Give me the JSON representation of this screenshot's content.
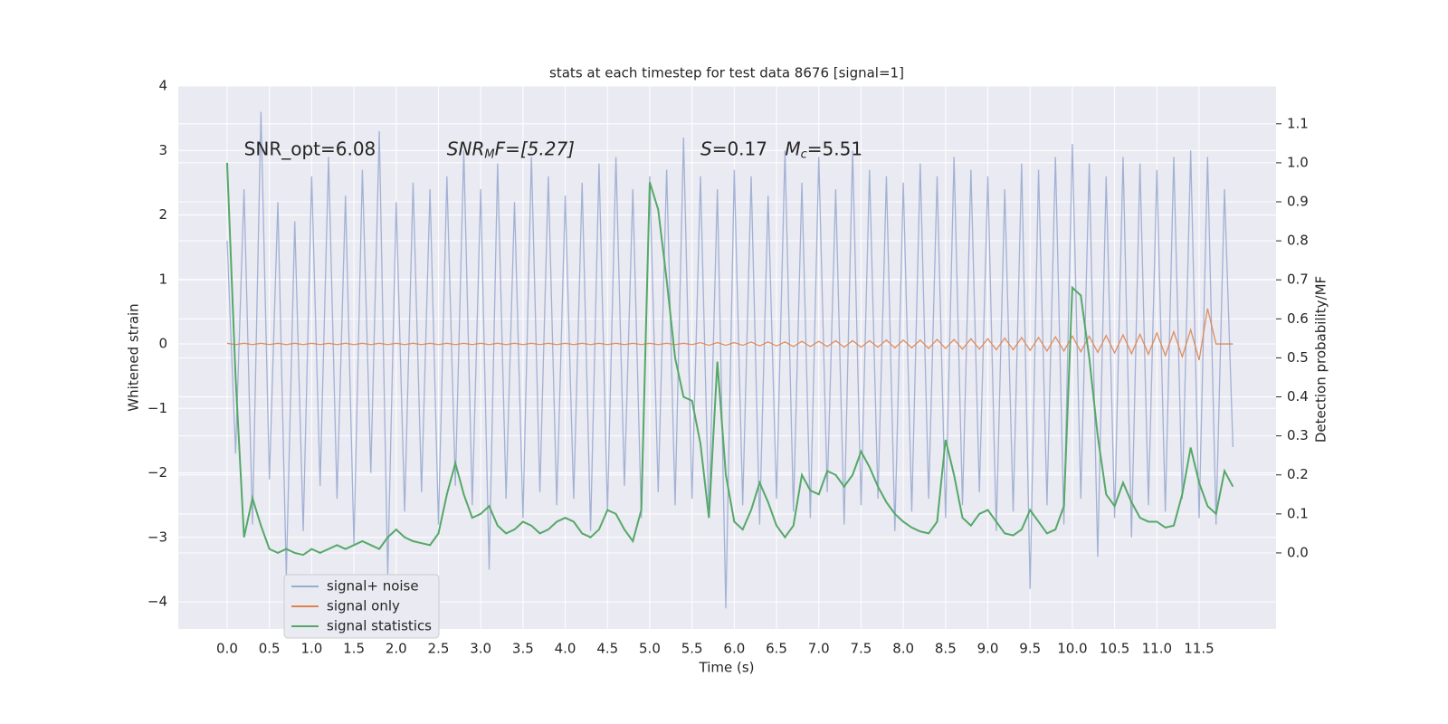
{
  "chart_data": {
    "type": "line",
    "title": "stats at each timestep for test data 8676 [signal=1]",
    "xlabel": "Time (s)",
    "ylabel": "Whitened strain",
    "y2label": "Detection probability/MF",
    "annotations": [
      {
        "text": "SNR_opt=6.08",
        "x": 0.2,
        "y": 2.9
      },
      {
        "text": "SNR",
        "subscript": "M",
        "suffix": "F=[5.27]",
        "x": 2.6,
        "y": 2.9
      },
      {
        "text": "S",
        "suffix": "=0.17",
        "x": 5.6,
        "y": 2.9
      },
      {
        "text": "M",
        "subscript": "c",
        "suffix": "=5.51",
        "x": 6.6,
        "y": 2.9
      }
    ],
    "xlim": [
      -0.578,
      12.41
    ],
    "ylim": [
      -4.42,
      4
    ],
    "y2lim": [
      -0.195,
      1.197
    ],
    "xticks": [
      {
        "value": 0,
        "label": "0.0"
      },
      {
        "value": 0.5,
        "label": "0.5"
      },
      {
        "value": 1,
        "label": "1.0"
      },
      {
        "value": 1.5,
        "label": "1.5"
      },
      {
        "value": 2,
        "label": "2.0"
      },
      {
        "value": 2.5,
        "label": "2.5"
      },
      {
        "value": 3,
        "label": "3.0"
      },
      {
        "value": 3.5,
        "label": "3.5"
      },
      {
        "value": 4,
        "label": "4.0"
      },
      {
        "value": 4.5,
        "label": "4.5"
      },
      {
        "value": 5,
        "label": "5.0"
      },
      {
        "value": 5.5,
        "label": "5.5"
      },
      {
        "value": 6,
        "label": "6.0"
      },
      {
        "value": 6.5,
        "label": "6.5"
      },
      {
        "value": 7,
        "label": "7.0"
      },
      {
        "value": 7.5,
        "label": "7.5"
      },
      {
        "value": 8,
        "label": "8.0"
      },
      {
        "value": 8.5,
        "label": "8.5"
      },
      {
        "value": 9,
        "label": "9.0"
      },
      {
        "value": 9.5,
        "label": "9.5"
      },
      {
        "value": 10,
        "label": "10.0"
      },
      {
        "value": 10.5,
        "label": "10.5"
      },
      {
        "value": 11,
        "label": "11.0"
      },
      {
        "value": 11.5,
        "label": "11.5"
      }
    ],
    "yticks": [
      {
        "value": -4,
        "label": "−4"
      },
      {
        "value": -3,
        "label": "−3"
      },
      {
        "value": -2,
        "label": "−2"
      },
      {
        "value": -1,
        "label": "−1"
      },
      0,
      1,
      2,
      3,
      4
    ],
    "y2ticks": [
      {
        "value": 0,
        "label": "0.0"
      },
      {
        "value": 0.1,
        "label": "0.1"
      },
      {
        "value": 0.2,
        "label": "0.2"
      },
      {
        "value": 0.3,
        "label": "0.3"
      },
      {
        "value": 0.4,
        "label": "0.4"
      },
      {
        "value": 0.5,
        "label": "0.5"
      },
      {
        "value": 0.6,
        "label": "0.6"
      },
      {
        "value": 0.7,
        "label": "0.7"
      },
      {
        "value": 0.8,
        "label": "0.8"
      },
      {
        "value": 0.9,
        "label": "0.9"
      },
      {
        "value": 1,
        "label": "1.0"
      },
      {
        "value": 1.1,
        "label": "1.1"
      }
    ],
    "grid": true,
    "legend": "lower left",
    "x": [
      0,
      0.1,
      0.2,
      0.3,
      0.4,
      0.5,
      0.6,
      0.7,
      0.8,
      0.9,
      1,
      1.1,
      1.2,
      1.3,
      1.4,
      1.5,
      1.6,
      1.7,
      1.8,
      1.9,
      2,
      2.1,
      2.2,
      2.3,
      2.4,
      2.5,
      2.6,
      2.7,
      2.8,
      2.9,
      3,
      3.1,
      3.2,
      3.3,
      3.4,
      3.5,
      3.6,
      3.7,
      3.8,
      3.9,
      4,
      4.1,
      4.2,
      4.3,
      4.4,
      4.5,
      4.6,
      4.7,
      4.8,
      4.9,
      5,
      5.1,
      5.2,
      5.3,
      5.4,
      5.5,
      5.6,
      5.7,
      5.8,
      5.9,
      6,
      6.1,
      6.2,
      6.3,
      6.4,
      6.5,
      6.6,
      6.7,
      6.8,
      6.9,
      7,
      7.1,
      7.2,
      7.3,
      7.4,
      7.5,
      7.6,
      7.7,
      7.8,
      7.9,
      8,
      8.1,
      8.2,
      8.3,
      8.4,
      8.5,
      8.6,
      8.7,
      8.8,
      8.9,
      9,
      9.1,
      9.2,
      9.3,
      9.4,
      9.5,
      9.6,
      9.7,
      9.8,
      9.9,
      10,
      10.1,
      10.2,
      10.3,
      10.4,
      10.5,
      10.6,
      10.7,
      10.8,
      10.9,
      11,
      11.1,
      11.2,
      11.3,
      11.4,
      11.5,
      11.6,
      11.7,
      11.8,
      11.9
    ],
    "series": [
      {
        "name": "signal+ noise",
        "color": "#9aabd0",
        "values": [
          1.6,
          -1.7,
          2.4,
          -2.8,
          3.6,
          -2.1,
          2.2,
          -3.6,
          1.9,
          -2.9,
          2.6,
          -2.2,
          2.9,
          -2.4,
          2.3,
          -3.1,
          2.7,
          -2.0,
          3.3,
          -3.6,
          2.2,
          -2.6,
          2.5,
          -2.3,
          2.4,
          -2.8,
          2.6,
          -2.2,
          3.0,
          -2.5,
          2.4,
          -3.5,
          2.8,
          -2.4,
          2.2,
          -2.7,
          2.9,
          -2.3,
          2.6,
          -2.5,
          2.3,
          -2.4,
          2.5,
          -2.9,
          2.8,
          -2.6,
          2.9,
          -2.2,
          2.4,
          -2.7,
          2.6,
          -2.3,
          2.7,
          -2.5,
          3.2,
          -2.4,
          2.6,
          -2.7,
          2.4,
          -4.1,
          2.7,
          -2.5,
          2.6,
          -2.8,
          2.3,
          -2.4,
          3.0,
          -2.6,
          2.5,
          -2.7,
          2.9,
          -2.3,
          2.4,
          -2.8,
          3.0,
          -2.5,
          2.7,
          -2.4,
          2.6,
          -2.9,
          2.5,
          -2.6,
          2.8,
          -2.4,
          2.6,
          -2.7,
          2.9,
          -2.5,
          2.7,
          -2.3,
          2.6,
          -2.9,
          2.4,
          -2.6,
          2.8,
          -3.8,
          2.7,
          -2.5,
          2.9,
          -2.8,
          3.1,
          -2.4,
          2.8,
          -3.3,
          2.6,
          -2.7,
          2.9,
          -3.0,
          2.8,
          -2.5,
          2.7,
          -2.6,
          2.9,
          -2.4,
          3.0,
          -2.7,
          2.9,
          -2.8,
          2.4,
          -1.6
        ]
      },
      {
        "name": "signal only",
        "color": "#dd8452",
        "values": [
          0.01,
          -0.01,
          0.01,
          -0.01,
          0.01,
          -0.01,
          0.01,
          -0.01,
          0.01,
          -0.01,
          0.01,
          -0.01,
          0.01,
          -0.01,
          0.01,
          -0.01,
          0.01,
          -0.01,
          0.01,
          -0.01,
          0.01,
          -0.01,
          0.01,
          -0.01,
          0.01,
          -0.01,
          0.01,
          -0.01,
          0.01,
          -0.01,
          0.01,
          -0.01,
          0.01,
          -0.01,
          0.01,
          -0.01,
          0.01,
          -0.01,
          0.01,
          -0.01,
          0.01,
          -0.01,
          0.01,
          -0.01,
          0.01,
          -0.01,
          0.01,
          -0.01,
          0.01,
          -0.01,
          0.01,
          -0.01,
          0.01,
          -0.01,
          0.01,
          -0.01,
          0.02,
          -0.02,
          0.02,
          -0.02,
          0.02,
          -0.02,
          0.03,
          -0.03,
          0.03,
          -0.03,
          0.03,
          -0.04,
          0.04,
          -0.04,
          0.04,
          -0.04,
          0.05,
          -0.05,
          0.05,
          -0.05,
          0.05,
          -0.05,
          0.06,
          -0.06,
          0.06,
          -0.06,
          0.06,
          -0.07,
          0.07,
          -0.07,
          0.07,
          -0.08,
          0.08,
          -0.08,
          0.08,
          -0.09,
          0.09,
          -0.09,
          0.1,
          -0.1,
          0.1,
          -0.11,
          0.11,
          -0.11,
          0.12,
          -0.12,
          0.12,
          -0.13,
          0.13,
          -0.14,
          0.14,
          -0.15,
          0.15,
          -0.16,
          0.17,
          -0.18,
          0.19,
          -0.2,
          0.22,
          -0.25,
          0.55,
          0,
          0,
          0
        ]
      },
      {
        "name": "signal statistics",
        "color": "#55a868",
        "axis": "y2",
        "values": [
          1.0,
          0.45,
          0.04,
          0.14,
          0.07,
          0.01,
          0.0,
          0.01,
          0.0,
          -0.005,
          0.01,
          0.0,
          0.01,
          0.02,
          0.01,
          0.02,
          0.03,
          0.02,
          0.01,
          0.04,
          0.06,
          0.04,
          0.03,
          0.025,
          0.02,
          0.05,
          0.15,
          0.23,
          0.15,
          0.09,
          0.1,
          0.12,
          0.07,
          0.05,
          0.06,
          0.08,
          0.07,
          0.05,
          0.06,
          0.08,
          0.09,
          0.08,
          0.05,
          0.04,
          0.06,
          0.11,
          0.1,
          0.06,
          0.03,
          0.11,
          0.95,
          0.88,
          0.7,
          0.5,
          0.4,
          0.39,
          0.28,
          0.09,
          0.49,
          0.2,
          0.08,
          0.06,
          0.11,
          0.18,
          0.13,
          0.07,
          0.04,
          0.07,
          0.2,
          0.16,
          0.15,
          0.21,
          0.2,
          0.17,
          0.2,
          0.26,
          0.22,
          0.17,
          0.13,
          0.1,
          0.08,
          0.065,
          0.055,
          0.05,
          0.08,
          0.29,
          0.2,
          0.09,
          0.07,
          0.1,
          0.11,
          0.08,
          0.05,
          0.045,
          0.06,
          0.11,
          0.08,
          0.05,
          0.06,
          0.12,
          0.68,
          0.66,
          0.5,
          0.3,
          0.15,
          0.12,
          0.18,
          0.13,
          0.09,
          0.08,
          0.08,
          0.065,
          0.07,
          0.15,
          0.27,
          0.18,
          0.12,
          0.1,
          0.21,
          0.17
        ]
      }
    ]
  }
}
